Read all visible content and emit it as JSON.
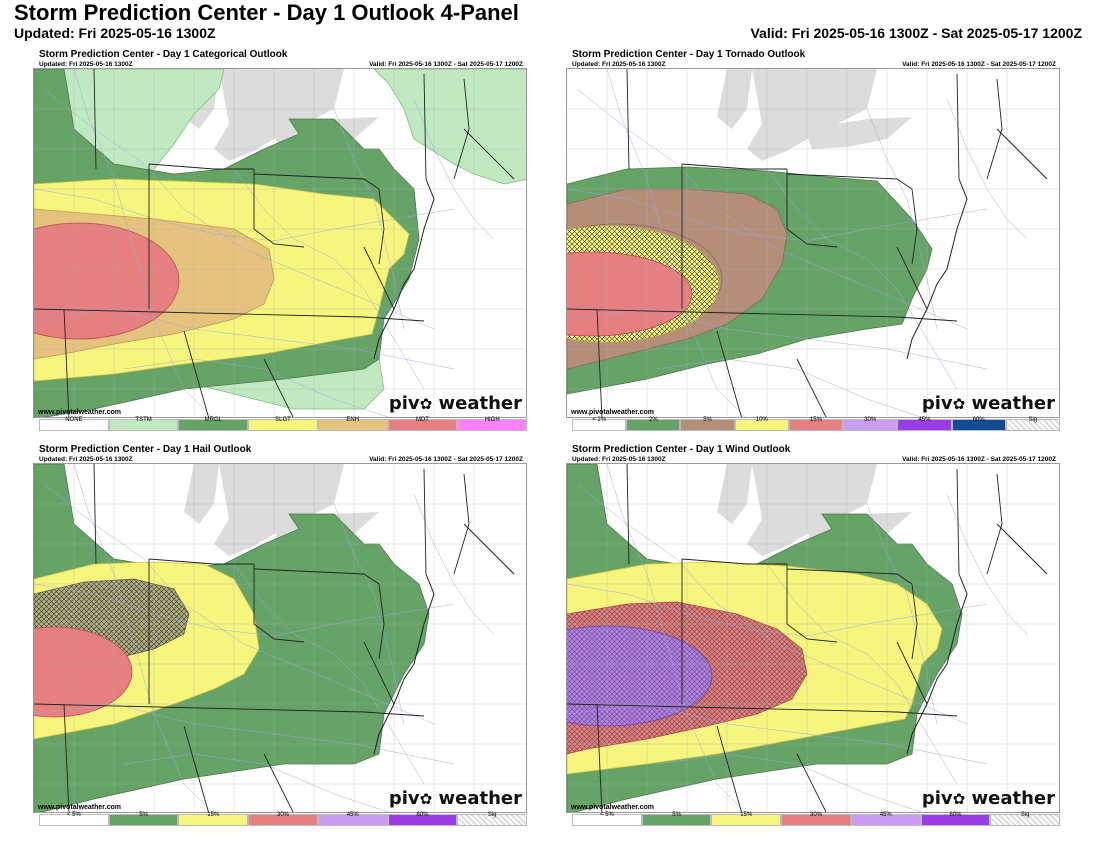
{
  "header": {
    "title": "Storm Prediction Center - Day 1 Outlook 4-Panel",
    "updated": "Updated: Fri 2025-05-16 1300Z",
    "valid": "Valid: Fri 2025-05-16 1300Z - Sat 2025-05-17 1200Z"
  },
  "watermark": {
    "left": "piv",
    "right": " weather",
    "url": "www.pivotalweather.com"
  },
  "panels": [
    {
      "title": "Storm Prediction Center - Day 1 Categorical Outlook",
      "updated": "Updated: Fri 2025-05-16 1300Z",
      "valid": "Valid: Fri 2025-05-16 1300Z - Sat 2025-05-17 1200Z",
      "legend": [
        {
          "label": "NONE",
          "color": "#ffffff"
        },
        {
          "label": "TSTM",
          "color": "#c1e9c1"
        },
        {
          "label": "MRGL",
          "color": "#66a366"
        },
        {
          "label": "SLGT",
          "color": "#f6f67f"
        },
        {
          "label": "ENH",
          "color": "#e6c27f"
        },
        {
          "label": "MDT",
          "color": "#e67f7f"
        },
        {
          "label": "HIGH",
          "color": "#ff7fff"
        }
      ]
    },
    {
      "title": "Storm Prediction Center - Day 1 Tornado Outlook",
      "updated": "Updated: Fri 2025-05-16 1300Z",
      "valid": "Valid: Fri 2025-05-16 1300Z - Sat 2025-05-17 1200Z",
      "legend": [
        {
          "label": "< 2%",
          "color": "#ffffff"
        },
        {
          "label": "2%",
          "color": "#66a366"
        },
        {
          "label": "5%",
          "color": "#b58e7a"
        },
        {
          "label": "10%",
          "color": "#f6f67f"
        },
        {
          "label": "15%",
          "color": "#e67f7f"
        },
        {
          "label": "30%",
          "color": "#c89cf0"
        },
        {
          "label": "45%",
          "color": "#9a3de6"
        },
        {
          "label": "60%",
          "color": "#104c91"
        },
        {
          "label": "Sig",
          "color": "#eeeeee"
        }
      ]
    },
    {
      "title": "Storm Prediction Center - Day 1 Hail Outlook",
      "updated": "Updated: Fri 2025-05-16 1300Z",
      "valid": "Valid: Fri 2025-05-16 1300Z - Sat 2025-05-17 1200Z",
      "legend": [
        {
          "label": "< 5%",
          "color": "#ffffff"
        },
        {
          "label": "5%",
          "color": "#66a366"
        },
        {
          "label": "15%",
          "color": "#f6f67f"
        },
        {
          "label": "30%",
          "color": "#e67f7f"
        },
        {
          "label": "45%",
          "color": "#c89cf0"
        },
        {
          "label": "60%",
          "color": "#9a3de6"
        },
        {
          "label": "Sig",
          "color": "#eeeeee"
        }
      ]
    },
    {
      "title": "Storm Prediction Center - Day 1 Wind Outlook",
      "updated": "Updated: Fri 2025-05-16 1300Z",
      "valid": "Valid: Fri 2025-05-16 1300Z - Sat 2025-05-17 1200Z",
      "legend": [
        {
          "label": "< 5%",
          "color": "#ffffff"
        },
        {
          "label": "5%",
          "color": "#66a366"
        },
        {
          "label": "15%",
          "color": "#f6f67f"
        },
        {
          "label": "30%",
          "color": "#e67f7f"
        },
        {
          "label": "45%",
          "color": "#c89cf0"
        },
        {
          "label": "60%",
          "color": "#9a3de6"
        },
        {
          "label": "Sig",
          "color": "#eeeeee"
        }
      ]
    }
  ]
}
